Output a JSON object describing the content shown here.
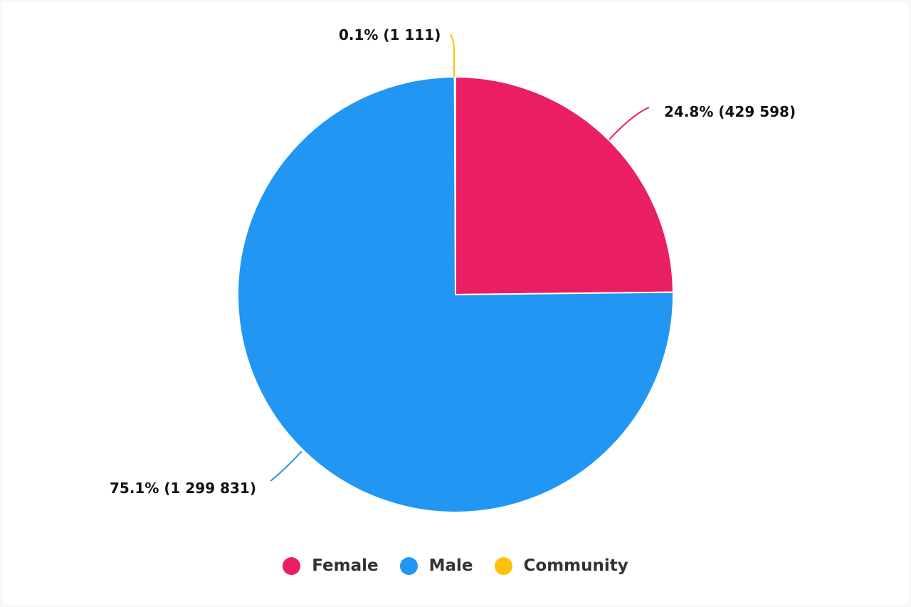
{
  "chart_data": {
    "type": "pie",
    "title": "",
    "categories": [
      "Female",
      "Male",
      "Community"
    ],
    "values": [
      429598,
      1299831,
      1111
    ],
    "percentages": [
      24.8,
      75.1,
      0.1
    ],
    "colors": [
      "#e91e63",
      "#2196f3",
      "#ffc107"
    ],
    "data_labels": [
      "24.8% (429 598)",
      "75.1% (1 299 831)",
      "0.1% (1 111)"
    ],
    "legend_position": "bottom",
    "start_angle_deg": 0,
    "direction": "clockwise"
  },
  "labels": {
    "female": "24.8% (429 598)",
    "male": "75.1% (1 299 831)",
    "community": "0.1% (1 111)"
  },
  "legend": {
    "items": [
      {
        "label": "Female",
        "color": "#e91e63"
      },
      {
        "label": "Male",
        "color": "#2196f3"
      },
      {
        "label": "Community",
        "color": "#ffc107"
      }
    ]
  }
}
